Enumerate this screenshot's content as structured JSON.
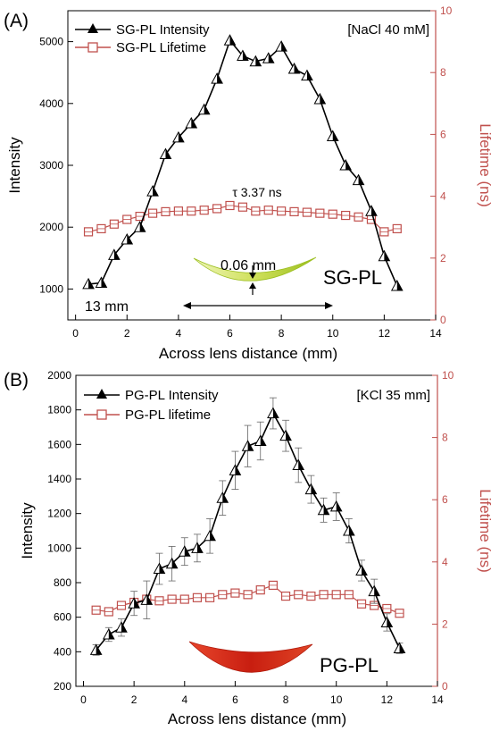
{
  "colors": {
    "intensity": "#000000",
    "lifetime": "#c0504d",
    "lifetime_fill": "#ffffff",
    "lens_a": "#b8cf2e",
    "lens_b": "#d42a1a"
  },
  "chart_data": [
    {
      "panel_label": "(A)",
      "type": "line",
      "xlabel": "Across lens distance (mm)",
      "ylabel": "Intensity",
      "y2label": "Lifetime (ns)",
      "xlim": [
        -0.3,
        14
      ],
      "ylim": [
        500,
        5500
      ],
      "y2lim": [
        0,
        10
      ],
      "x_ticks": [
        0,
        2,
        4,
        6,
        8,
        10,
        12,
        14
      ],
      "y_ticks": [
        1000,
        2000,
        3000,
        4000,
        5000
      ],
      "y2_ticks": [
        0,
        2,
        4,
        6,
        8,
        10
      ],
      "legend_position": "top-left",
      "condition": "[NaCl 40 mM]",
      "lens_label": "SG-PL",
      "annotations": {
        "lifetime_note": "τ 3.37 ns",
        "thickness": "0.06 mm",
        "width": "13 mm"
      },
      "series": [
        {
          "name": "SG-PL Intensity",
          "axis": "left",
          "marker": "triangle",
          "x": [
            0.5,
            1.0,
            1.5,
            2.0,
            2.5,
            3.0,
            3.5,
            4.0,
            4.5,
            5.0,
            5.5,
            6.0,
            6.5,
            7.0,
            7.5,
            8.0,
            8.5,
            9.0,
            9.5,
            10.0,
            10.5,
            11.0,
            11.5,
            12.0,
            12.5
          ],
          "y": [
            1080,
            1100,
            1550,
            1800,
            2000,
            2580,
            3180,
            3450,
            3680,
            3900,
            4400,
            5020,
            4770,
            4680,
            4730,
            4920,
            4560,
            4450,
            4070,
            3470,
            3000,
            2760,
            2260,
            1530,
            1050
          ]
        },
        {
          "name": "SG-PL Lifetime",
          "axis": "right",
          "marker": "square",
          "x": [
            0.5,
            1.0,
            1.5,
            2.0,
            2.5,
            3.0,
            3.5,
            4.0,
            4.5,
            5.0,
            5.5,
            6.0,
            6.5,
            7.0,
            7.5,
            8.0,
            8.5,
            9.0,
            9.5,
            10.0,
            10.5,
            11.0,
            11.5,
            12.0,
            12.5
          ],
          "y": [
            2.85,
            2.95,
            3.1,
            3.25,
            3.35,
            3.45,
            3.5,
            3.52,
            3.52,
            3.55,
            3.6,
            3.7,
            3.65,
            3.52,
            3.55,
            3.52,
            3.5,
            3.48,
            3.45,
            3.42,
            3.38,
            3.33,
            3.25,
            2.85,
            2.95
          ]
        }
      ]
    },
    {
      "panel_label": "(B)",
      "type": "line",
      "xlabel": "Across lens distance (mm)",
      "ylabel": "Intensity",
      "y2label": "Lifetime (ns)",
      "xlim": [
        -0.3,
        14
      ],
      "ylim": [
        200,
        2000
      ],
      "y2lim": [
        0,
        10
      ],
      "x_ticks": [
        0,
        2,
        4,
        6,
        8,
        10,
        12,
        14
      ],
      "y_ticks": [
        200,
        400,
        600,
        800,
        1000,
        1200,
        1400,
        1600,
        1800,
        2000
      ],
      "y2_ticks": [
        0,
        2,
        4,
        6,
        8,
        10
      ],
      "legend_position": "top-left",
      "condition": "[KCl 35 mm]",
      "lens_label": "PG-PL",
      "series": [
        {
          "name": "PG-PL Intensity",
          "axis": "left",
          "marker": "triangle",
          "x": [
            0.5,
            1.0,
            1.5,
            2.0,
            2.5,
            3.0,
            3.5,
            4.0,
            4.5,
            5.0,
            5.5,
            6.0,
            6.5,
            7.0,
            7.5,
            8.0,
            8.5,
            9.0,
            9.5,
            10.0,
            10.5,
            11.0,
            11.5,
            12.0,
            12.5
          ],
          "y": [
            410,
            500,
            540,
            680,
            700,
            880,
            910,
            980,
            1000,
            1070,
            1290,
            1450,
            1590,
            1620,
            1780,
            1650,
            1480,
            1340,
            1220,
            1240,
            1100,
            870,
            750,
            570,
            420
          ],
          "err": [
            30,
            40,
            50,
            70,
            110,
            90,
            100,
            80,
            80,
            100,
            100,
            110,
            120,
            110,
            90,
            90,
            100,
            80,
            70,
            80,
            70,
            60,
            70,
            50,
            30
          ]
        },
        {
          "name": "PG-PL lifetime",
          "axis": "right",
          "marker": "square",
          "x": [
            0.5,
            1.0,
            1.5,
            2.0,
            2.5,
            3.0,
            3.5,
            4.0,
            4.5,
            5.0,
            5.5,
            6.0,
            6.5,
            7.0,
            7.5,
            8.0,
            8.5,
            9.0,
            9.5,
            10.0,
            10.5,
            11.0,
            11.5,
            12.0,
            12.5
          ],
          "y": [
            2.45,
            2.4,
            2.6,
            2.7,
            2.8,
            2.75,
            2.8,
            2.8,
            2.85,
            2.85,
            2.95,
            3.0,
            2.95,
            3.1,
            3.25,
            2.9,
            2.95,
            2.9,
            2.95,
            2.95,
            2.95,
            2.65,
            2.6,
            2.5,
            2.35
          ]
        }
      ]
    }
  ]
}
